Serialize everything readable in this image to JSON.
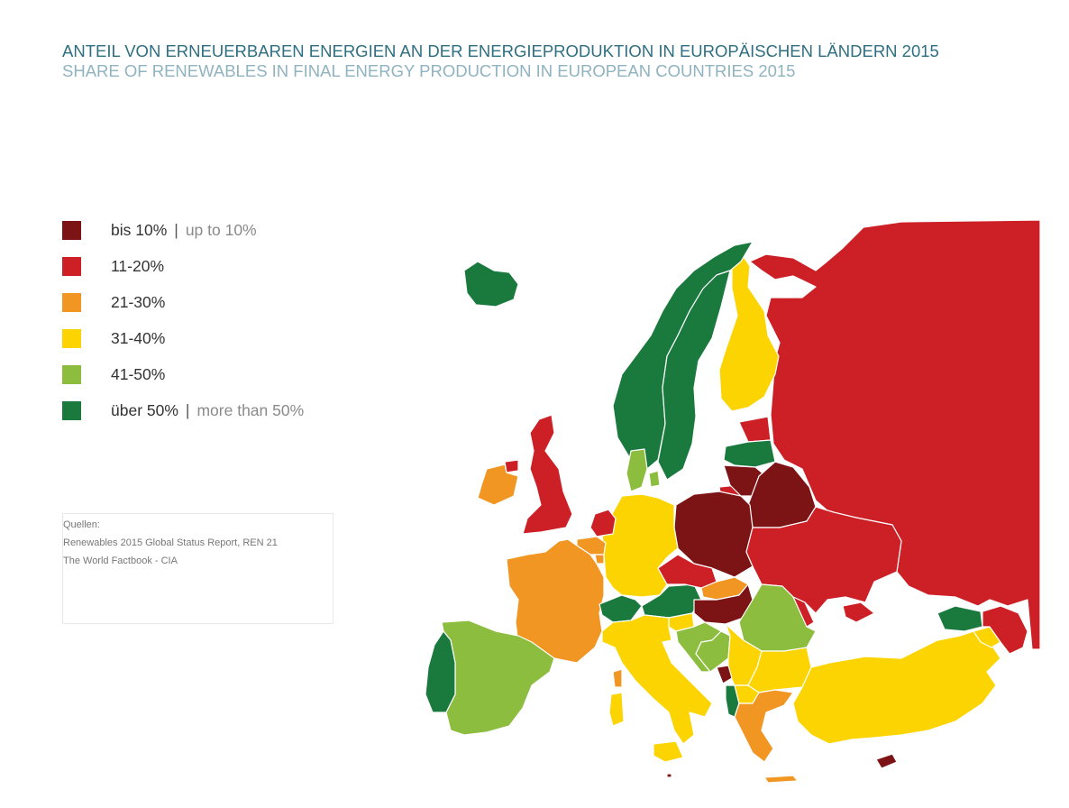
{
  "title": {
    "german": "ANTEIL VON ERNEUERBAREN ENERGIEN AN DER ENERGIEPRODUKTION IN EUROPÄISCHEN LÄNDERN 2015",
    "english": "SHARE OF RENEWABLES IN FINAL ENERGY PRODUCTION IN EUROPEAN COUNTRIES 2015"
  },
  "legend": [
    {
      "label": "bis 10%",
      "sublabel": "up to 10%",
      "color": "#7c1416"
    },
    {
      "label": "11-20%",
      "sublabel": "",
      "color": "#cc1f26"
    },
    {
      "label": "21-30%",
      "sublabel": "",
      "color": "#f19623"
    },
    {
      "label": "31-40%",
      "sublabel": "",
      "color": "#fcd402"
    },
    {
      "label": "41-50%",
      "sublabel": "",
      "color": "#8dbd3e"
    },
    {
      "label": "über 50%",
      "sublabel": "more than 50%",
      "color": "#1a7a3e"
    }
  ],
  "sources": {
    "heading": "Quellen:",
    "lines": [
      "Renewables 2015 Global Status Report, REN 21",
      "The World Factbook - CIA"
    ]
  },
  "map_classes": {
    "iceland": "over50",
    "norway": "over50",
    "sweden": "over50",
    "finland": "31-40",
    "russia": "11-20",
    "estonia": "11-20",
    "latvia": "over50",
    "lithuania": "upto10",
    "belarus": "upto10",
    "ukraine": "11-20",
    "moldova": "11-20",
    "poland": "upto10",
    "germany": "31-40",
    "denmark": "41-50",
    "netherlands": "11-20",
    "belgium": "21-30",
    "uk": "11-20",
    "ireland": "21-30",
    "france": "21-30",
    "spain": "41-50",
    "portugal": "over50",
    "switzerland": "over50",
    "austria": "over50",
    "italy": "31-40",
    "czechia": "11-20",
    "slovakia": "21-30",
    "hungary": "upto10",
    "slovenia": "31-40",
    "croatia": "41-50",
    "bosnia": "41-50",
    "serbia": "31-40",
    "montenegro": "upto10",
    "albania": "over50",
    "macedonia": "31-40",
    "greece": "21-30",
    "bulgaria": "31-40",
    "romania": "41-50",
    "turkey": "31-40",
    "georgia": "over50",
    "armenia": "31-40",
    "azerbaijan": "11-20",
    "cyprus": "upto10",
    "malta": "upto10",
    "luxembourg": "21-30"
  }
}
